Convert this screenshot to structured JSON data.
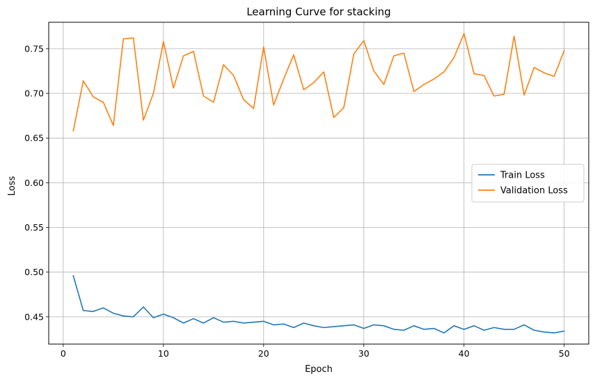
{
  "chart_data": {
    "type": "line",
    "title": "Learning Curve for stacking",
    "xlabel": "Epoch",
    "ylabel": "Loss",
    "xlim": [
      -1.45,
      52.45
    ],
    "ylim": [
      0.4195,
      0.7795
    ],
    "xticks": [
      0,
      10,
      20,
      30,
      40,
      50
    ],
    "yticks": [
      0.45,
      0.5,
      0.55,
      0.6,
      0.65,
      0.7,
      0.75
    ],
    "grid": true,
    "legend_position": "center-right",
    "x": [
      1,
      2,
      3,
      4,
      5,
      6,
      7,
      8,
      9,
      10,
      11,
      12,
      13,
      14,
      15,
      16,
      17,
      18,
      19,
      20,
      21,
      22,
      23,
      24,
      25,
      26,
      27,
      28,
      29,
      30,
      31,
      32,
      33,
      34,
      35,
      36,
      37,
      38,
      39,
      40,
      41,
      42,
      43,
      44,
      45,
      46,
      47,
      48,
      49,
      50
    ],
    "series": [
      {
        "name": "Train Loss",
        "color": "#1f77b4",
        "values": [
          0.496,
          0.457,
          0.456,
          0.46,
          0.454,
          0.451,
          0.45,
          0.461,
          0.449,
          0.453,
          0.449,
          0.443,
          0.448,
          0.443,
          0.449,
          0.444,
          0.445,
          0.443,
          0.444,
          0.445,
          0.441,
          0.442,
          0.438,
          0.443,
          0.44,
          0.438,
          0.439,
          0.44,
          0.441,
          0.437,
          0.441,
          0.44,
          0.436,
          0.435,
          0.44,
          0.436,
          0.437,
          0.432,
          0.44,
          0.436,
          0.44,
          0.435,
          0.438,
          0.436,
          0.436,
          0.441,
          0.435,
          0.433,
          0.432,
          0.434
        ]
      },
      {
        "name": "Validation Loss",
        "color": "#ff7f0e",
        "values": [
          0.658,
          0.714,
          0.696,
          0.69,
          0.664,
          0.761,
          0.762,
          0.67,
          0.7,
          0.758,
          0.706,
          0.742,
          0.747,
          0.697,
          0.69,
          0.732,
          0.72,
          0.693,
          0.683,
          0.752,
          0.687,
          0.716,
          0.743,
          0.704,
          0.712,
          0.724,
          0.673,
          0.684,
          0.744,
          0.759,
          0.725,
          0.71,
          0.742,
          0.745,
          0.702,
          0.71,
          0.716,
          0.724,
          0.74,
          0.767,
          0.722,
          0.72,
          0.697,
          0.699,
          0.764,
          0.698,
          0.729,
          0.723,
          0.719,
          0.748
        ]
      }
    ]
  }
}
